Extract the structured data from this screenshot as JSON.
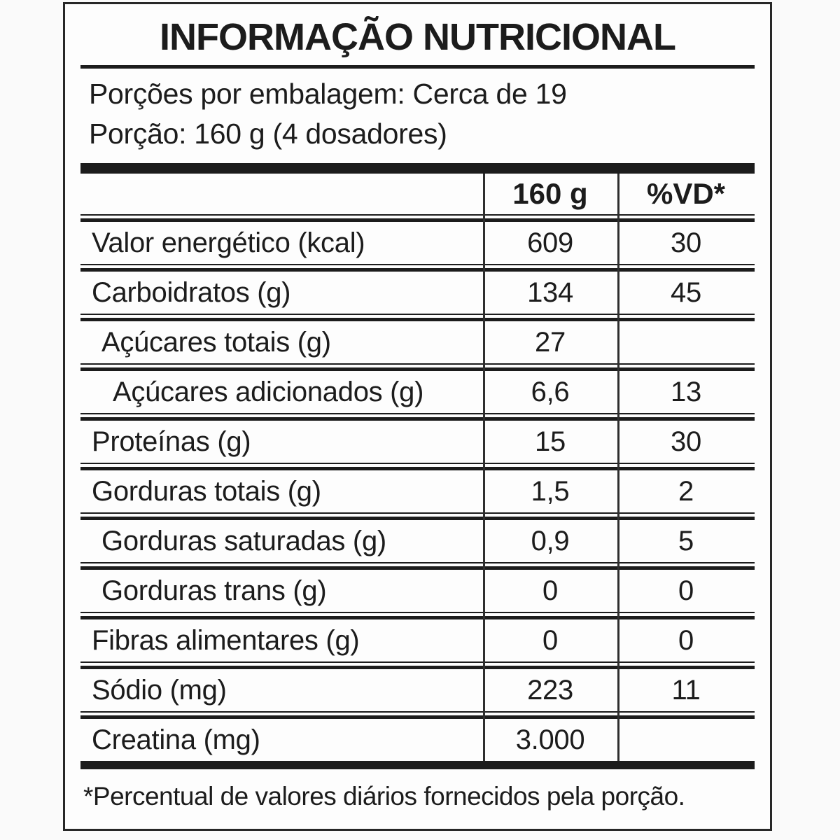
{
  "label": {
    "title": "INFORMAÇÃO NUTRICIONAL",
    "servings_line": "Porções por embalagem: Cerca de 19",
    "portion_line": "Porção: 160 g (4 dosadores)",
    "columns": {
      "amount": "160 g",
      "dv": "%VD*"
    },
    "rows": [
      {
        "name": "Valor energético (kcal)",
        "amount": "609",
        "dv": "30",
        "indent": 0
      },
      {
        "name": "Carboidratos (g)",
        "amount": "134",
        "dv": "45",
        "indent": 0
      },
      {
        "name": "Açúcares totais (g)",
        "amount": "27",
        "dv": "",
        "indent": 1
      },
      {
        "name": "Açúcares adicionados (g)",
        "amount": "6,6",
        "dv": "13",
        "indent": 2
      },
      {
        "name": "Proteínas (g)",
        "amount": "15",
        "dv": "30",
        "indent": 0
      },
      {
        "name": "Gorduras totais (g)",
        "amount": "1,5",
        "dv": "2",
        "indent": 0
      },
      {
        "name": "Gorduras saturadas (g)",
        "amount": "0,9",
        "dv": "5",
        "indent": 1
      },
      {
        "name": "Gorduras trans (g)",
        "amount": "0",
        "dv": "0",
        "indent": 1
      },
      {
        "name": "Fibras alimentares (g)",
        "amount": "0",
        "dv": "0",
        "indent": 0
      },
      {
        "name": "Sódio (mg)",
        "amount": "223",
        "dv": "11",
        "indent": 0
      },
      {
        "name": "Creatina (mg)",
        "amount": "3.000",
        "dv": "",
        "indent": 0
      }
    ],
    "footnote": "*Percentual de valores diários fornecidos pela porção.",
    "colors": {
      "ink": "#1c1c1c",
      "paper": "#fdfdfd"
    }
  }
}
